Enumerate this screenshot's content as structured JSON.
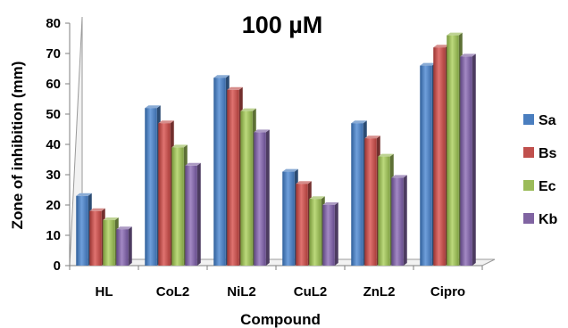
{
  "chart_data": {
    "type": "bar",
    "title": "100 µM",
    "xlabel": "Compound",
    "ylabel": "Zone of inhibition (mm)",
    "categories": [
      "HL",
      "CoL2",
      "NiL2",
      "CuL2",
      "ZnL2",
      "Cipro"
    ],
    "series": [
      {
        "name": "Sa",
        "color": "#4a7ebf",
        "values": [
          23,
          52,
          62,
          31,
          47,
          66
        ]
      },
      {
        "name": "Bs",
        "color": "#c0504d",
        "values": [
          18,
          47,
          58,
          27,
          42,
          72
        ]
      },
      {
        "name": "Ec",
        "color": "#9bbb59",
        "values": [
          15,
          39,
          51,
          22,
          36,
          76
        ]
      },
      {
        "name": "Kb",
        "color": "#8064a2",
        "values": [
          12,
          33,
          44,
          20,
          29,
          69
        ]
      }
    ],
    "ylim": [
      0,
      80
    ],
    "yticks": [
      0,
      10,
      20,
      30,
      40,
      50,
      60,
      70,
      80
    ],
    "grid": false,
    "legend_position": "right",
    "style": "3d-clustered-column"
  }
}
